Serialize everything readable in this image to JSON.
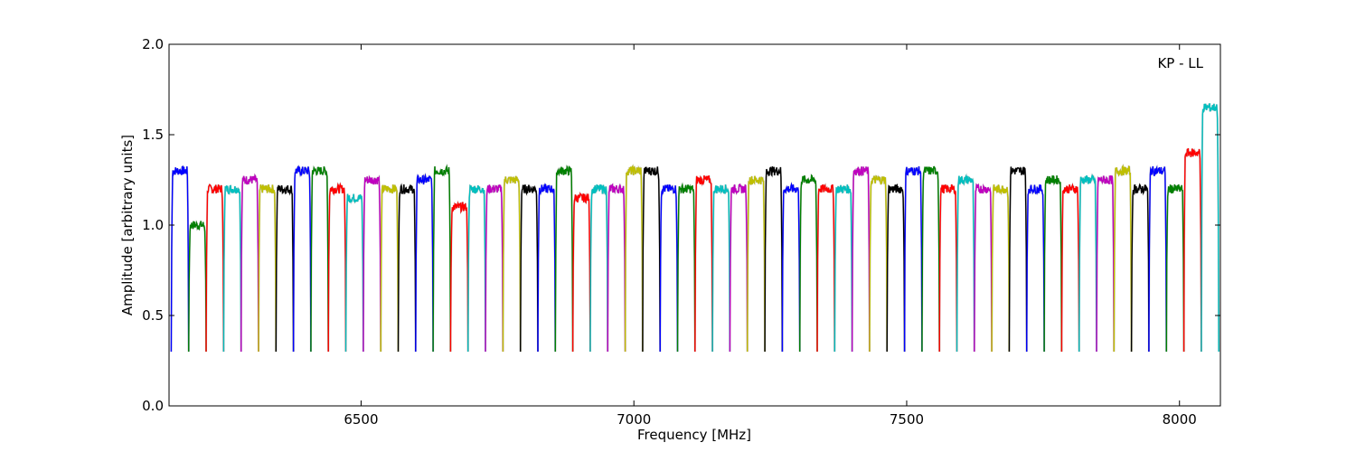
{
  "chart_data": {
    "type": "line",
    "title": "",
    "xlabel": "Frequency [MHz]",
    "ylabel": "Amplitude [arbitrary units]",
    "xlim": [
      6148,
      8075
    ],
    "ylim": [
      0.0,
      2.0
    ],
    "xticks": [
      6500,
      7000,
      7500,
      8000
    ],
    "yticks": [
      0.0,
      0.5,
      1.0,
      1.5,
      2.0
    ],
    "xtick_labels": [
      "6500",
      "7000",
      "7500",
      "8000"
    ],
    "ytick_labels": [
      "0.0",
      "0.5",
      "1.0",
      "1.5",
      "2.0"
    ],
    "annotation": "KP - LL",
    "grid": false,
    "background_curve_color": "#c0c0c0",
    "color_cycle": [
      "#0000ff",
      "#008000",
      "#ff0000",
      "#00bfbf",
      "#bf00bf",
      "#bfbf00",
      "#000000"
    ],
    "channel_start_mhz": 6152,
    "channel_width_mhz": 32,
    "channel_mid_levels": [
      1.3,
      1.0,
      1.2,
      1.2,
      1.25,
      1.2,
      1.2,
      1.3,
      1.3,
      1.2,
      1.15,
      1.25,
      1.2,
      1.2,
      1.25,
      1.3,
      1.1,
      1.2,
      1.2,
      1.25,
      1.2,
      1.2,
      1.3,
      1.15,
      1.2,
      1.2,
      1.3,
      1.3,
      1.2,
      1.2,
      1.25,
      1.2,
      1.2,
      1.25,
      1.3,
      1.2,
      1.25,
      1.2,
      1.2,
      1.3,
      1.25,
      1.2,
      1.3,
      1.3,
      1.2,
      1.25,
      1.2,
      1.2,
      1.3,
      1.2,
      1.25,
      1.2,
      1.25,
      1.25,
      1.3,
      1.2,
      1.3,
      1.2,
      1.4,
      1.65
    ]
  }
}
